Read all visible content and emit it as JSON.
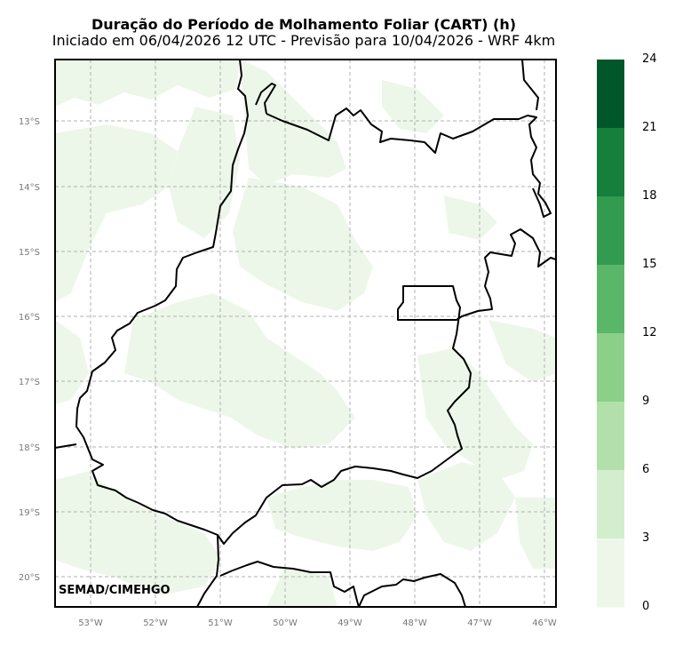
{
  "title": "Duração do Período de Molhamento Foliar (CART) (h)",
  "subtitle": "Iniciado em 06/04/2026 12 UTC - Previsão para 10/04/2026 - WRF 4km",
  "credit": "SEMAD/CIMEHGO",
  "lat_labels": [
    "13°S",
    "14°S",
    "15°S",
    "16°S",
    "17°S",
    "18°S",
    "19°S",
    "20°S"
  ],
  "lon_labels": [
    "53°W",
    "52°W",
    "51°W",
    "50°W",
    "49°W",
    "48°W",
    "47°W",
    "46°W"
  ],
  "colorbar": {
    "ticks": [
      "24",
      "21",
      "18",
      "15",
      "12",
      "9",
      "6",
      "3",
      "0"
    ],
    "bins": [
      {
        "range": [
          21,
          24
        ],
        "color": "#00582a"
      },
      {
        "range": [
          18,
          21
        ],
        "color": "#157f3b"
      },
      {
        "range": [
          15,
          18
        ],
        "color": "#339b4f"
      },
      {
        "range": [
          12,
          15
        ],
        "color": "#5ab769"
      },
      {
        "range": [
          9,
          12
        ],
        "color": "#8bcf89"
      },
      {
        "range": [
          6,
          9
        ],
        "color": "#b2e0ab"
      },
      {
        "range": [
          3,
          6
        ],
        "color": "#d3eecd"
      },
      {
        "range": [
          0,
          3
        ],
        "color": "#edf7e9"
      }
    ]
  },
  "colors": {
    "field_light": "#edf7e9",
    "grid": "#b0b0b0",
    "border": "#000000"
  }
}
